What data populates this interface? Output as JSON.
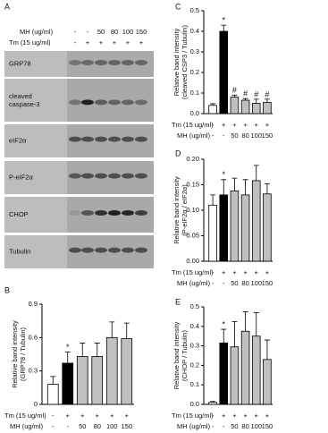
{
  "blot": {
    "panel": "A",
    "condition_rows": [
      {
        "label": "MH (ug/ml)",
        "values": [
          "-",
          "-",
          "50",
          "80",
          "100",
          "150"
        ]
      },
      {
        "label": "Tm (15 ug/ml)",
        "values": [
          "-",
          "+",
          "+",
          "+",
          "+",
          "+"
        ]
      }
    ],
    "bands": [
      "GRP78",
      "cleaved caspase-3",
      "eIF2α",
      "P-eIF2α",
      "CHOP",
      "Tubulin"
    ]
  },
  "chart_data": [
    {
      "type": "bar",
      "panel": "B",
      "ylabel": [
        "Relative band intensity",
        "(GRP78 / Tubulin)"
      ],
      "categories": [
        null,
        null,
        null,
        null,
        null,
        null
      ],
      "values": [
        0.18,
        0.37,
        0.43,
        0.43,
        0.6,
        0.59
      ],
      "errors": [
        0.07,
        0.1,
        0.12,
        0.12,
        0.14,
        0.14
      ],
      "colors": [
        "#ffffff",
        "#000000",
        "#c0c0c0",
        "#c0c0c0",
        "#c0c0c0",
        "#c0c0c0"
      ],
      "annotations": [
        null,
        "*",
        null,
        null,
        null,
        null
      ],
      "ylim": [
        0,
        0.9
      ],
      "yticks": [
        0,
        0.3,
        0.6,
        0.9
      ],
      "x_rows": [
        {
          "label": "Tm (15 ug/ml)",
          "values": [
            "-",
            "+",
            "+",
            "+",
            "+",
            "+"
          ]
        },
        {
          "label": "MH (ug/ml)",
          "values": [
            "-",
            "-",
            "50",
            "80",
            "100",
            "150"
          ]
        }
      ]
    },
    {
      "type": "bar",
      "panel": "C",
      "ylabel": [
        "Relative band intensity",
        "(cleaved CSP3 / Tubulin)"
      ],
      "categories": [
        null,
        null,
        null,
        null,
        null,
        null
      ],
      "values": [
        0.04,
        0.4,
        0.08,
        0.065,
        0.05,
        0.055
      ],
      "errors": [
        0.008,
        0.03,
        0.01,
        0.008,
        0.02,
        0.015
      ],
      "colors": [
        "#ffffff",
        "#000000",
        "#c0c0c0",
        "#c0c0c0",
        "#c0c0c0",
        "#c0c0c0"
      ],
      "annotations": [
        null,
        "*",
        "#",
        "#",
        "#",
        "#"
      ],
      "ylim": [
        0,
        0.5
      ],
      "yticks": [
        {
          "value": 0,
          "label": "0.0"
        },
        0.1,
        0.2,
        0.3,
        0.4,
        0.5
      ],
      "x_rows": [
        {
          "label": "Tm (15 ug/ml)",
          "values": [
            "-",
            "+",
            "+",
            "+",
            "+",
            "+"
          ]
        },
        {
          "label": "MH (ug/ml)",
          "values": [
            "-",
            "-",
            "50",
            "80",
            "100",
            "150"
          ]
        }
      ]
    },
    {
      "type": "bar",
      "panel": "D",
      "ylabel": [
        "Relative band intensity",
        "(P-eIF2α / eIF2α)"
      ],
      "categories": [
        null,
        null,
        null,
        null,
        null,
        null
      ],
      "values": [
        0.11,
        0.13,
        0.138,
        0.13,
        0.158,
        0.132
      ],
      "errors": [
        0.02,
        0.03,
        0.025,
        0.03,
        0.03,
        0.02
      ],
      "colors": [
        "#ffffff",
        "#000000",
        "#c0c0c0",
        "#c0c0c0",
        "#c0c0c0",
        "#c0c0c0"
      ],
      "annotations": [
        null,
        "*",
        null,
        null,
        null,
        null
      ],
      "ylim": [
        0,
        0.2
      ],
      "yticks": [
        {
          "value": 0,
          "label": "0.00"
        },
        0.05,
        {
          "value": 0.1,
          "label": "0.10"
        },
        0.15,
        {
          "value": 0.2,
          "label": "0.20"
        }
      ],
      "x_rows": [
        {
          "label": "Tm (15 ug/ml)",
          "values": [
            "-",
            "+",
            "+",
            "+",
            "+",
            "+"
          ]
        },
        {
          "label": "MH (ug/ml)",
          "values": [
            "-",
            "-",
            "50",
            "80",
            "100",
            "150"
          ]
        }
      ]
    },
    {
      "type": "bar",
      "panel": "E",
      "ylabel": [
        "Relative band intensity",
        "(CHOP / Tubulin)"
      ],
      "categories": [
        null,
        null,
        null,
        null,
        null,
        null
      ],
      "values": [
        0.01,
        0.315,
        0.295,
        0.375,
        0.35,
        0.23
      ],
      "errors": [
        0.005,
        0.07,
        0.13,
        0.1,
        0.12,
        0.1
      ],
      "colors": [
        "#ffffff",
        "#000000",
        "#c0c0c0",
        "#c0c0c0",
        "#c0c0c0",
        "#c0c0c0"
      ],
      "annotations": [
        null,
        "*",
        null,
        null,
        null,
        null
      ],
      "ylim": [
        0,
        0.5
      ],
      "yticks": [
        {
          "value": 0,
          "label": "0.0"
        },
        0.1,
        0.2,
        0.3,
        0.4,
        0.5
      ],
      "x_rows": [
        {
          "label": "Tm (15 ug/ml)",
          "values": [
            "-",
            "+",
            "+",
            "+",
            "+",
            "+"
          ]
        },
        {
          "label": "MH (ug/ml)",
          "values": [
            "-",
            "-",
            "50",
            "80",
            "100",
            "150"
          ]
        }
      ]
    }
  ]
}
